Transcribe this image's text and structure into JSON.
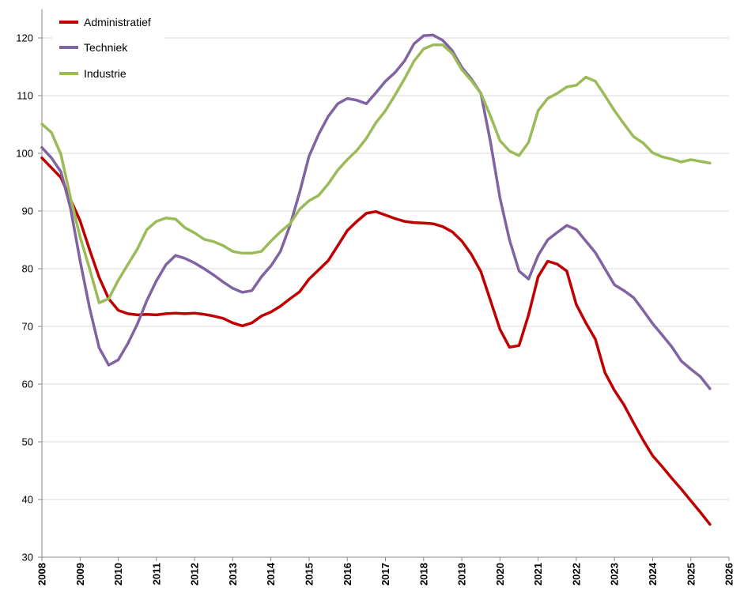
{
  "chart_data": {
    "type": "line",
    "grid": true,
    "legend": "top-left",
    "xlim": [
      "2008-01",
      "2026-01"
    ],
    "ylim": [
      30,
      125
    ],
    "x_ticks": [
      "2008",
      "2009",
      "2010",
      "2011",
      "2012",
      "2013",
      "2014",
      "2015",
      "2016",
      "2017",
      "2018",
      "2019",
      "2020",
      "2021",
      "2022",
      "2023",
      "2024",
      "2025",
      "2026"
    ],
    "y_ticks": [
      30,
      40,
      50,
      60,
      70,
      80,
      90,
      100,
      110,
      120
    ],
    "x": [
      "2008-01",
      "2008-04",
      "2008-07",
      "2008-10",
      "2009-01",
      "2009-04",
      "2009-07",
      "2009-10",
      "2010-01",
      "2010-04",
      "2010-07",
      "2010-10",
      "2011-01",
      "2011-04",
      "2011-07",
      "2011-10",
      "2012-01",
      "2012-04",
      "2012-07",
      "2012-10",
      "2013-01",
      "2013-04",
      "2013-07",
      "2013-10",
      "2014-01",
      "2014-04",
      "2014-07",
      "2014-10",
      "2015-01",
      "2015-04",
      "2015-07",
      "2015-10",
      "2016-01",
      "2016-04",
      "2016-07",
      "2016-10",
      "2017-01",
      "2017-04",
      "2017-07",
      "2017-10",
      "2018-01",
      "2018-04",
      "2018-07",
      "2018-10",
      "2019-01",
      "2019-04",
      "2019-07",
      "2019-10",
      "2020-01",
      "2020-04",
      "2020-07",
      "2020-10",
      "2021-01",
      "2021-04",
      "2021-07",
      "2021-10",
      "2022-01",
      "2022-04",
      "2022-07",
      "2022-10",
      "2023-01",
      "2023-04",
      "2023-07",
      "2023-10",
      "2024-01",
      "2024-04",
      "2024-07",
      "2024-10",
      "2025-01",
      "2025-04",
      "2025-07"
    ],
    "series": [
      {
        "name": "Administratief",
        "color": "#C00000",
        "values": [
          99.2,
          97.5,
          95.8,
          92.0,
          88.3,
          83.3,
          78.5,
          74.8,
          72.8,
          72.2,
          72.0,
          72.1,
          72.0,
          72.2,
          72.3,
          72.2,
          72.3,
          72.1,
          71.8,
          71.4,
          70.6,
          70.1,
          70.6,
          71.8,
          72.5,
          73.5,
          74.8,
          76.0,
          78.2,
          79.8,
          81.4,
          84.0,
          86.6,
          88.2,
          89.6,
          89.9,
          89.3,
          88.7,
          88.2,
          88.0,
          87.9,
          87.8,
          87.3,
          86.4,
          84.8,
          82.5,
          79.5,
          74.5,
          69.5,
          66.4,
          66.7,
          72.0,
          78.6,
          81.3,
          80.8,
          79.6,
          73.8,
          70.6,
          67.8,
          62.0,
          58.9,
          56.4,
          53.3,
          50.3,
          47.6,
          45.7,
          43.7,
          41.8,
          39.8,
          37.8,
          35.7
        ]
      },
      {
        "name": "Techniek",
        "color": "#8064A2",
        "values": [
          101.0,
          99.2,
          96.8,
          90.5,
          81.4,
          73.2,
          66.3,
          63.3,
          64.2,
          67.0,
          70.4,
          74.5,
          77.9,
          80.7,
          82.3,
          81.8,
          81.0,
          80.0,
          78.9,
          77.7,
          76.6,
          75.9,
          76.2,
          78.6,
          80.5,
          83.0,
          87.5,
          93.2,
          99.5,
          103.3,
          106.4,
          108.6,
          109.5,
          109.2,
          108.6,
          110.5,
          112.5,
          114.0,
          116.0,
          119.0,
          120.4,
          120.5,
          119.6,
          117.8,
          114.9,
          112.9,
          110.4,
          102.0,
          92.3,
          85.0,
          79.6,
          78.2,
          82.3,
          85.0,
          86.3,
          87.5,
          86.8,
          84.8,
          82.8,
          80.0,
          77.2,
          76.2,
          75.0,
          72.8,
          70.5,
          68.5,
          66.5,
          64.0,
          62.6,
          61.3,
          59.2
        ]
      },
      {
        "name": "Industrie",
        "color": "#9BBB59",
        "values": [
          105.1,
          103.6,
          99.8,
          92.3,
          85.5,
          80.0,
          74.1,
          74.8,
          78.0,
          80.7,
          83.4,
          86.8,
          88.2,
          88.8,
          88.6,
          87.1,
          86.2,
          85.1,
          84.7,
          84.0,
          83.0,
          82.7,
          82.7,
          83.0,
          84.8,
          86.4,
          87.8,
          90.3,
          91.8,
          92.7,
          94.7,
          97.1,
          98.9,
          100.5,
          102.6,
          105.3,
          107.4,
          110.1,
          112.9,
          116.0,
          118.1,
          118.8,
          118.8,
          117.3,
          114.5,
          112.6,
          110.4,
          106.5,
          102.2,
          100.4,
          99.6,
          101.9,
          107.4,
          109.5,
          110.4,
          111.5,
          111.8,
          113.2,
          112.5,
          110.0,
          107.4,
          105.1,
          102.9,
          101.8,
          100.1,
          99.4,
          99.0,
          98.5,
          98.9,
          98.6,
          98.3
        ]
      }
    ]
  }
}
